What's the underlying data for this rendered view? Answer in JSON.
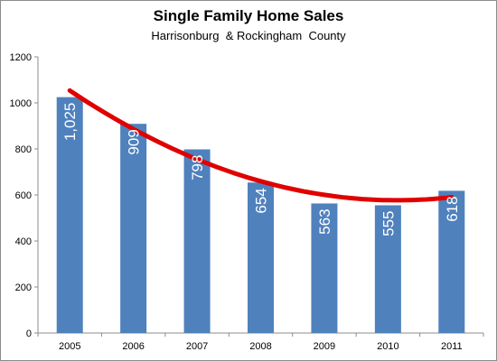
{
  "chart_data": {
    "type": "bar",
    "title": "Single Family Home Sales",
    "subtitle": "Harrisonburg  & Rockingham  County",
    "categories": [
      "2005",
      "2006",
      "2007",
      "2008",
      "2009",
      "2010",
      "2011"
    ],
    "values": [
      1025,
      909,
      798,
      654,
      563,
      555,
      618
    ],
    "data_labels": [
      "1,025",
      "909",
      "798",
      "654",
      "563",
      "555",
      "618"
    ],
    "ylim": [
      0,
      1200
    ],
    "yticks": [
      0,
      200,
      400,
      600,
      800,
      1000,
      1200
    ],
    "grid": false,
    "trendline": {
      "type": "polynomial",
      "color": "#e00000"
    },
    "bar_color": "#4f81bd"
  }
}
